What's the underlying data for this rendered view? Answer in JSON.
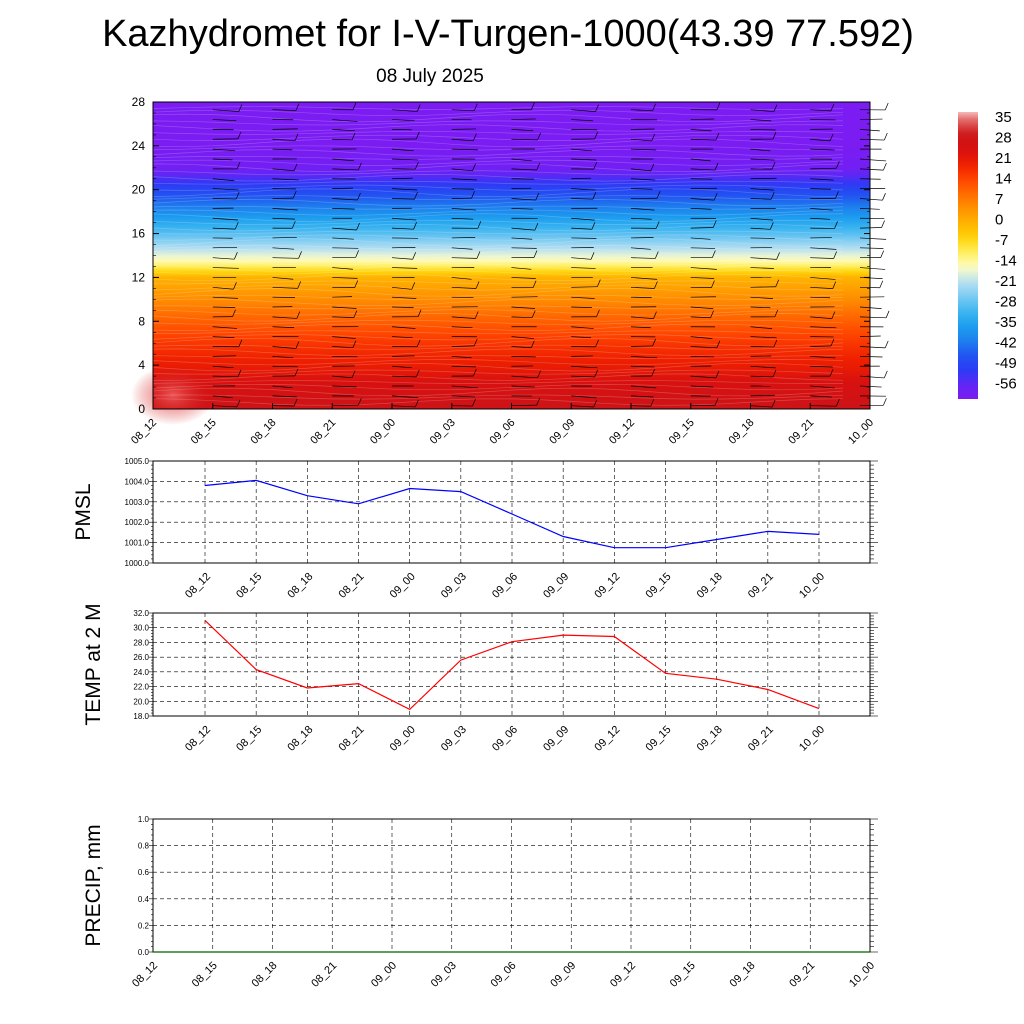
{
  "title": "Kazhydromet for I-V-Turgen-1000(43.39 77.592)",
  "subtitle": "08 July 2025",
  "colors": {
    "pmsl_line": "#0000ff",
    "temp_line": "#ff0000",
    "precip_line": "#006400",
    "barb": "#000000"
  },
  "chart_data": [
    {
      "type": "heatmap",
      "title": "",
      "xlabel": "",
      "ylabel": "",
      "x_ticks": [
        "08_12",
        "08_15",
        "08_18",
        "08_21",
        "09_00",
        "09_03",
        "09_06",
        "09_09",
        "09_12",
        "09_15",
        "09_18",
        "09_21",
        "10_00"
      ],
      "y_ticks": [
        "0",
        "4",
        "8",
        "12",
        "16",
        "20",
        "24",
        "28"
      ],
      "ylim": [
        0,
        28
      ],
      "colorbar": {
        "labels": [
          "35",
          "28",
          "21",
          "14",
          "7",
          "0",
          "-7",
          "-14",
          "-21",
          "-28",
          "-35",
          "-42",
          "-49",
          "-56"
        ],
        "range": [
          -60,
          38
        ]
      },
      "temperature_profile": {
        "heights": [
          0,
          2,
          4,
          6,
          8,
          10,
          12,
          12.8,
          13.5,
          16,
          18,
          20,
          22,
          24,
          28
        ],
        "values": [
          30,
          26,
          21,
          17,
          12,
          6,
          0,
          -8,
          -14,
          -28,
          -38,
          -48,
          -58,
          -60,
          -60
        ]
      },
      "wind_barbs": true
    },
    {
      "type": "line",
      "title": "",
      "xlabel": "",
      "ylabel": "PMSL",
      "ylim": [
        1000.0,
        1005.0
      ],
      "y_ticks": [
        "1000.0",
        "1001.0",
        "1002.0",
        "1003.0",
        "1004.0",
        "1005.0"
      ],
      "x": [
        "08_12",
        "08_15",
        "08_18",
        "08_21",
        "09_00",
        "09_03",
        "09_06",
        "09_09",
        "09_12",
        "09_15",
        "09_18",
        "09_21",
        "10_00"
      ],
      "series": [
        {
          "values": [
            1003.8,
            1004.05,
            1003.3,
            1002.9,
            1003.65,
            1003.5,
            1002.4,
            1001.3,
            1000.75,
            1000.75,
            1001.15,
            1001.55,
            1001.4
          ]
        }
      ]
    },
    {
      "type": "line",
      "title": "",
      "xlabel": "",
      "ylabel": "TEMP at 2 M",
      "ylim": [
        18.0,
        32.0
      ],
      "y_ticks": [
        "18.0",
        "20.0",
        "22.0",
        "24.0",
        "26.0",
        "28.0",
        "30.0",
        "32.0"
      ],
      "x": [
        "08_12",
        "08_15",
        "08_18",
        "08_21",
        "09_00",
        "09_03",
        "09_06",
        "09_09",
        "09_12",
        "09_15",
        "09_18",
        "09_21",
        "10_00"
      ],
      "series": [
        {
          "values": [
            31.0,
            24.3,
            21.8,
            22.4,
            18.9,
            25.6,
            28.1,
            29.0,
            28.8,
            23.8,
            23.0,
            21.6,
            19.0
          ]
        }
      ]
    },
    {
      "type": "line",
      "title": "",
      "xlabel": "",
      "ylabel": "PRECIP, mm",
      "ylim": [
        0.0,
        1.0
      ],
      "y_ticks": [
        "0.0",
        "0.2",
        "0.4",
        "0.6",
        "0.8",
        "1.0"
      ],
      "x": [
        "08_12",
        "08_15",
        "08_18",
        "08_21",
        "09_00",
        "09_03",
        "09_06",
        "09_09",
        "09_12",
        "09_15",
        "09_18",
        "09_21",
        "10_00"
      ],
      "series": [
        {
          "values": [
            0,
            0,
            0,
            0,
            0,
            0,
            0,
            0,
            0,
            0,
            0,
            0,
            0
          ]
        }
      ]
    }
  ]
}
